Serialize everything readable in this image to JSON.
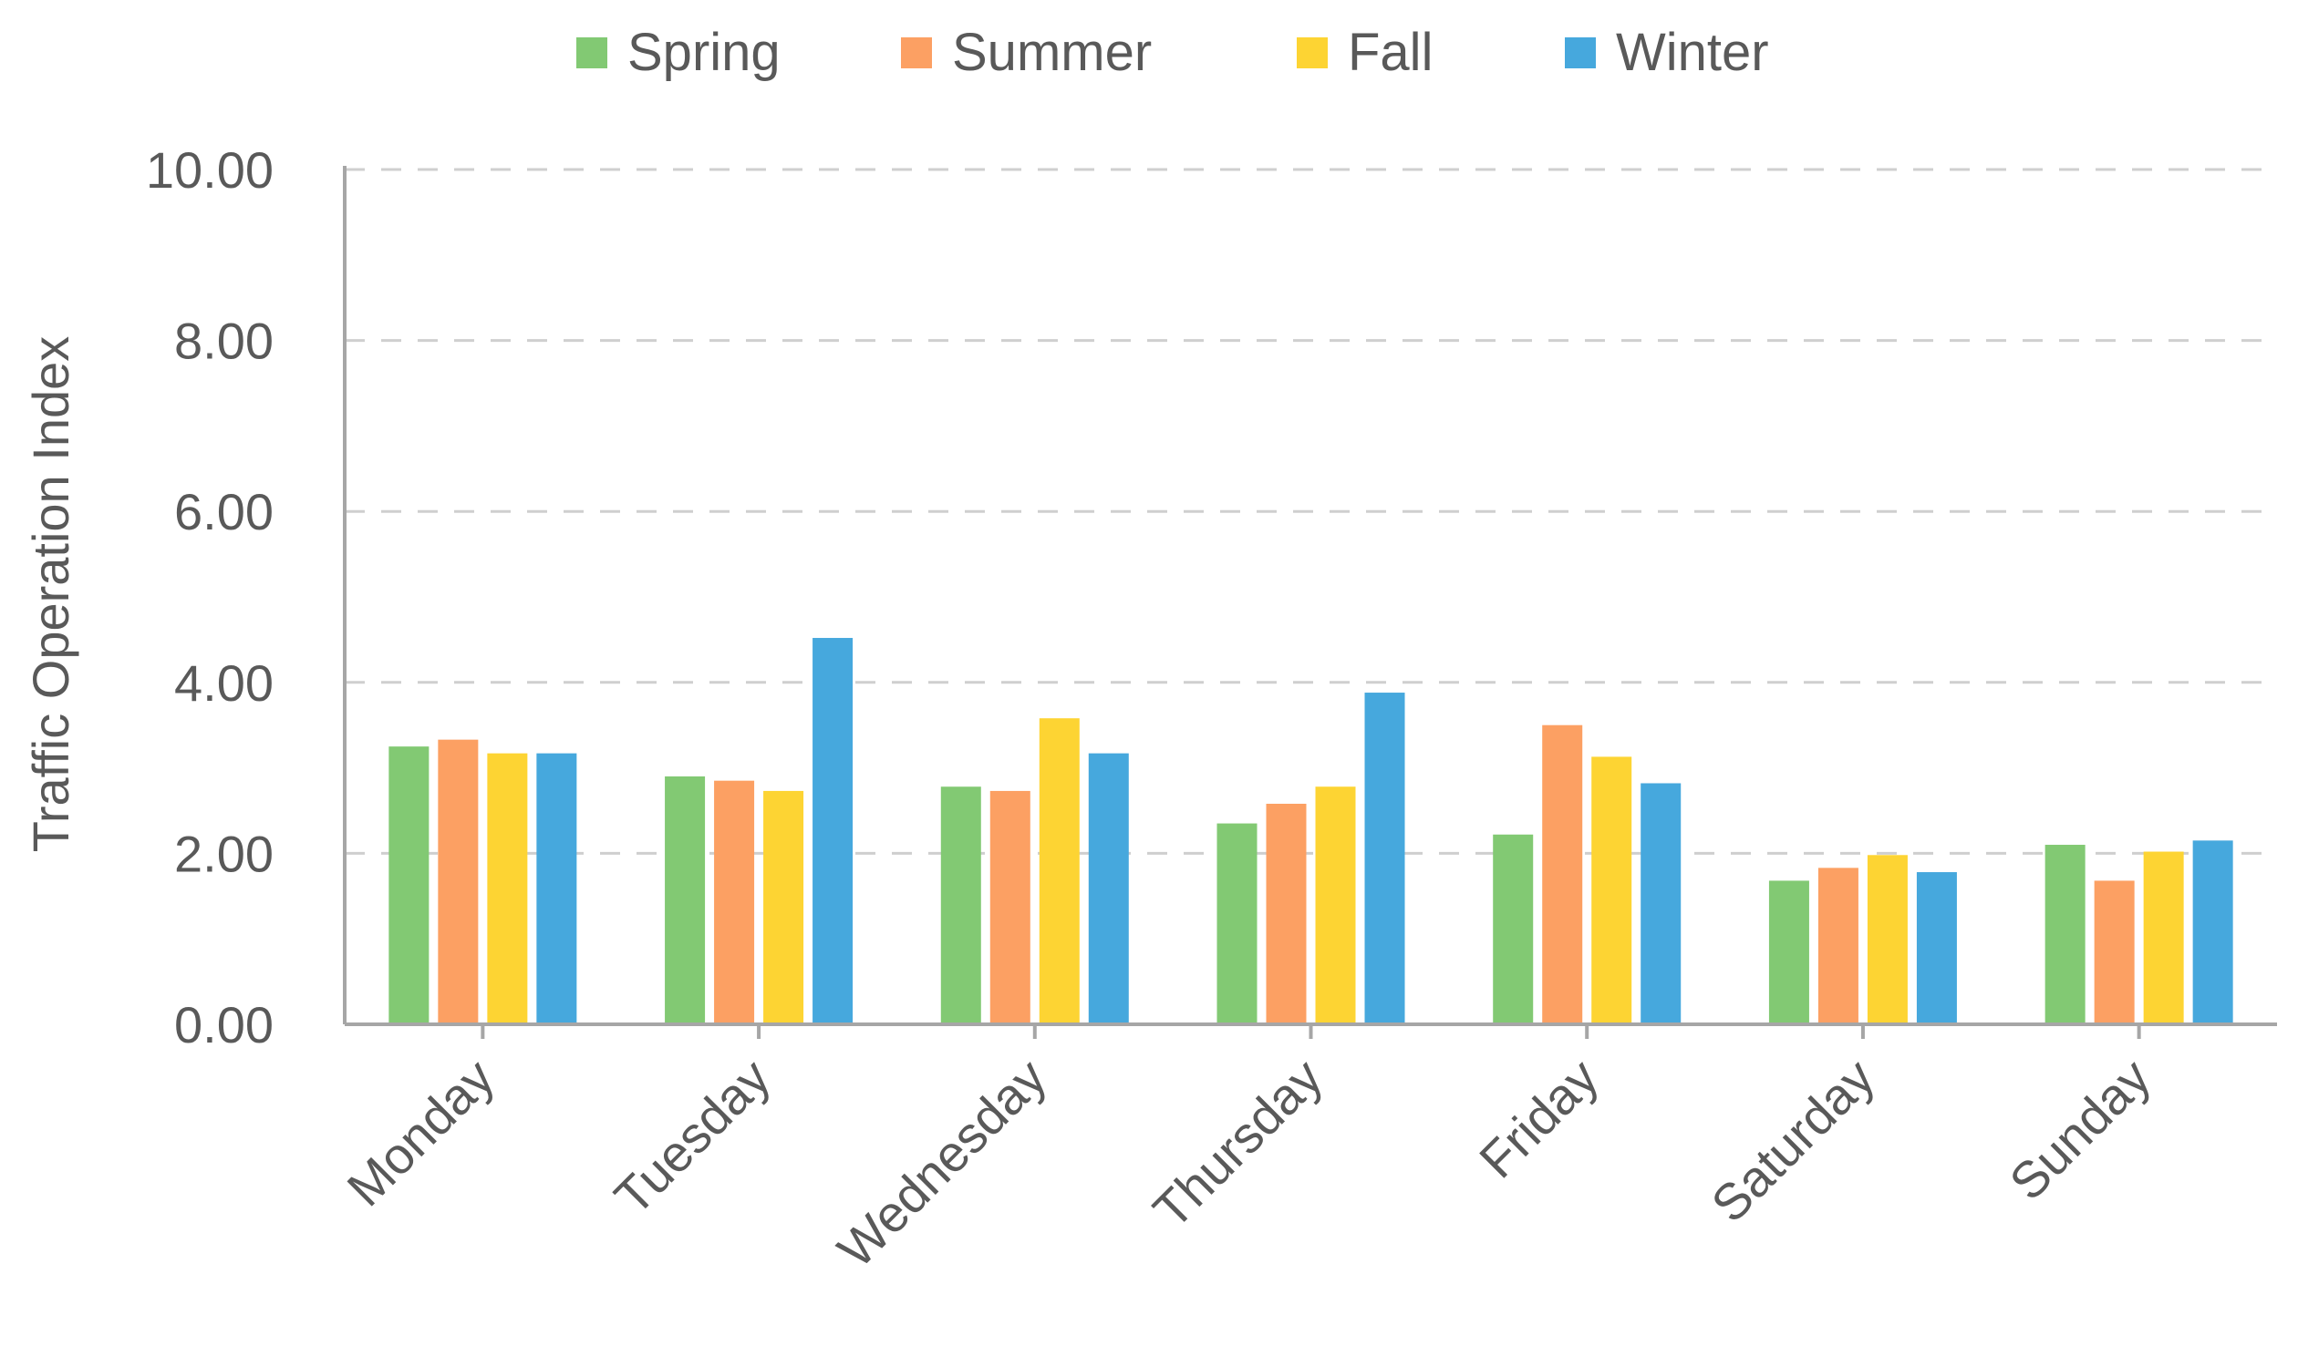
{
  "chart_data": {
    "type": "bar",
    "title": "",
    "xlabel": "",
    "ylabel": "Traffic Operation Index",
    "ylim": [
      0,
      10
    ],
    "yticks": [
      "0.00",
      "2.00",
      "4.00",
      "6.00",
      "8.00",
      "10.00"
    ],
    "grid": true,
    "legend_position": "top",
    "categories": [
      "Monday",
      "Tuesday",
      "Wednesday",
      "Thursday",
      "Friday",
      "Saturday",
      "Sunday"
    ],
    "series": [
      {
        "name": "Spring",
        "color": "#82C973",
        "values": [
          3.25,
          2.9,
          2.78,
          2.35,
          2.22,
          1.68,
          2.1
        ]
      },
      {
        "name": "Summer",
        "color": "#FCA063",
        "values": [
          3.33,
          2.85,
          2.73,
          2.58,
          3.5,
          1.83,
          1.68
        ]
      },
      {
        "name": "Fall",
        "color": "#FDD433",
        "values": [
          3.17,
          2.73,
          3.58,
          2.78,
          3.13,
          1.98,
          2.02
        ]
      },
      {
        "name": "Winter",
        "color": "#46A8DD",
        "values": [
          3.17,
          4.52,
          3.17,
          3.88,
          2.82,
          1.78,
          2.15
        ]
      }
    ]
  }
}
